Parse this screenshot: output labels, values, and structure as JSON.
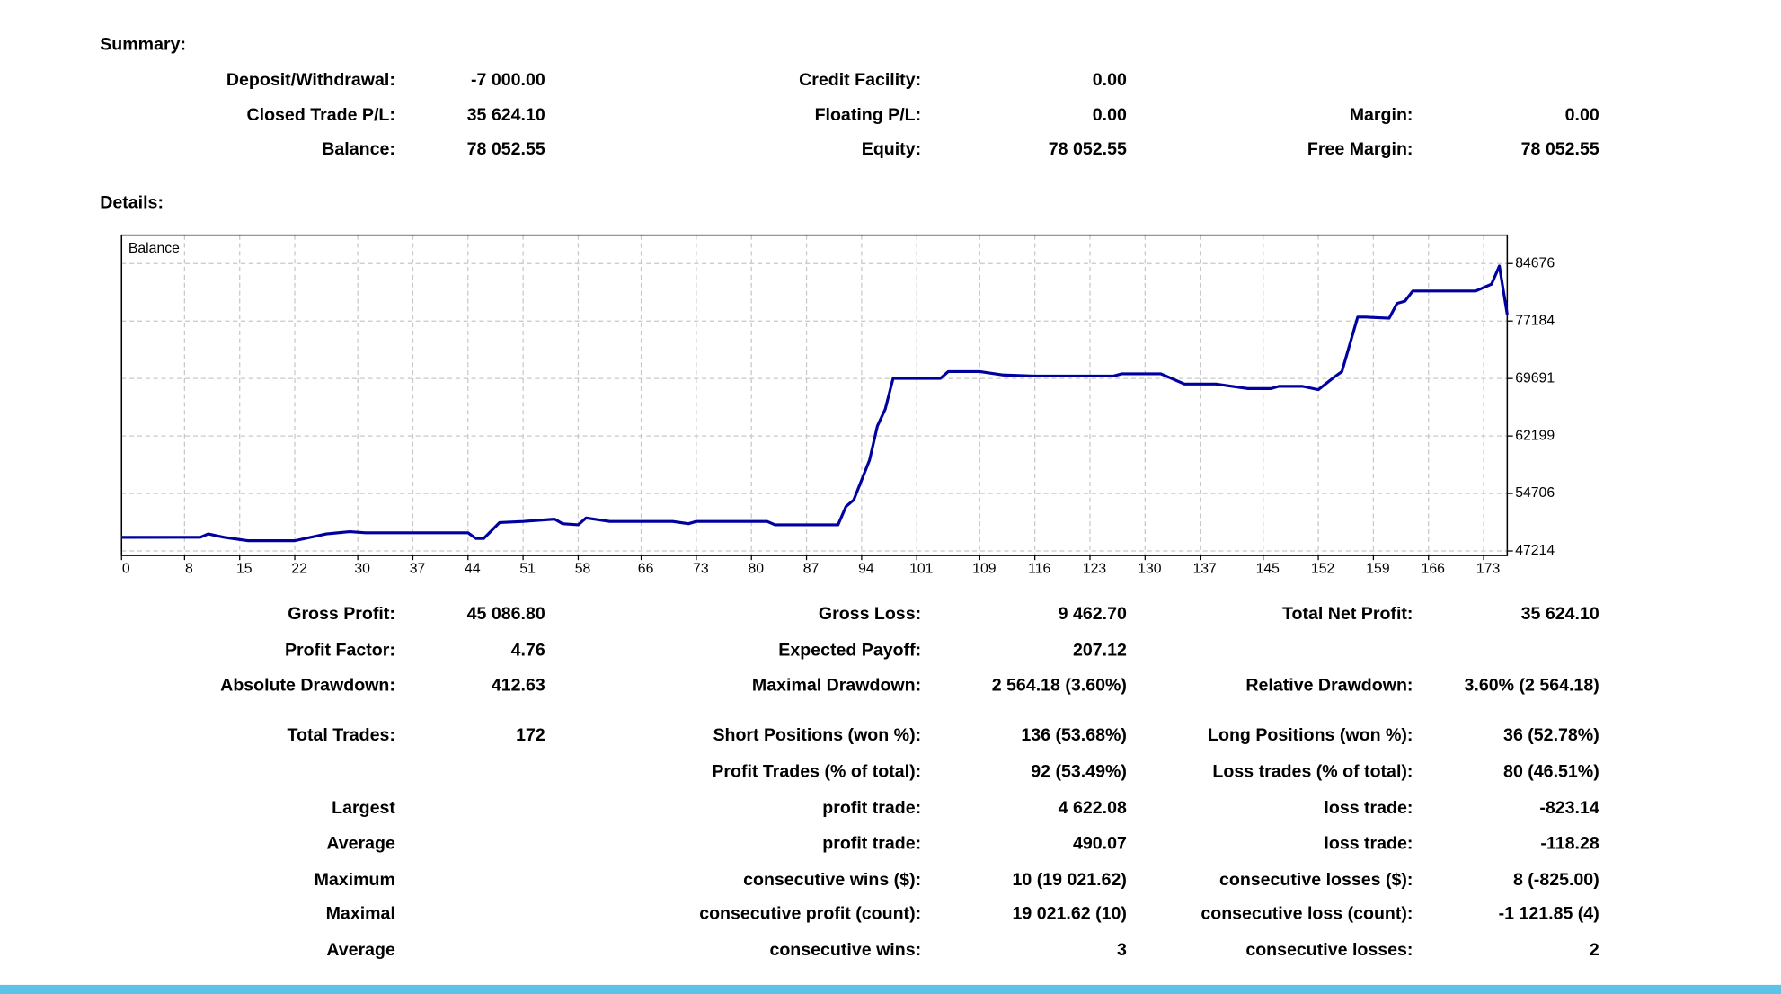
{
  "summary": {
    "title": "Summary:",
    "rows": [
      [
        "Deposit/Withdrawal:",
        "-7 000.00",
        "Credit Facility:",
        "0.00",
        null,
        null
      ],
      [
        "Closed Trade P/L:",
        "35 624.10",
        "Floating P/L:",
        "0.00",
        "Margin:",
        "0.00"
      ],
      [
        "Balance:",
        "78 052.55",
        "Equity:",
        "78 052.55",
        "Free Margin:",
        "78 052.55"
      ]
    ]
  },
  "details": {
    "title": "Details:",
    "rows": [
      [
        "Gross Profit:",
        "45 086.80",
        "Gross Loss:",
        "9 462.70",
        "Total Net Profit:",
        "35 624.10"
      ],
      [
        "Profit Factor:",
        "4.76",
        "Expected Payoff:",
        "207.12",
        null,
        null
      ],
      [
        "Absolute Drawdown:",
        "412.63",
        "Maximal Drawdown:",
        "2 564.18 (3.60%)",
        "Relative Drawdown:",
        "3.60% (2 564.18)"
      ],
      [
        "Total Trades:",
        "172",
        "Short Positions (won %):",
        "136 (53.68%)",
        "Long Positions (won %):",
        "36 (52.78%)"
      ],
      [
        null,
        null,
        "Profit Trades (% of total):",
        "92 (53.49%)",
        "Loss trades (% of total):",
        "80 (46.51%)"
      ],
      [
        "Largest",
        null,
        "profit trade:",
        "4 622.08",
        "loss trade:",
        "-823.14"
      ],
      [
        "Average",
        null,
        "profit trade:",
        "490.07",
        "loss trade:",
        "-118.28"
      ],
      [
        "Maximum",
        null,
        "consecutive wins ($):",
        "10 (19 021.62)",
        "consecutive losses ($):",
        "8 (-825.00)"
      ],
      [
        "Maximal",
        null,
        "consecutive profit (count):",
        "19 021.62 (10)",
        "consecutive loss (count):",
        "-1 121.85 (4)"
      ],
      [
        "Average",
        null,
        "consecutive wins:",
        "3",
        "consecutive losses:",
        "2"
      ]
    ]
  },
  "chart_data": {
    "type": "line",
    "x": [
      0,
      10,
      11,
      13,
      16,
      22,
      26,
      29,
      31,
      44,
      45,
      46,
      48,
      51,
      55,
      56,
      58,
      59,
      62,
      67,
      70,
      72,
      73,
      82,
      83,
      91,
      92,
      93,
      95,
      96,
      97,
      98,
      104,
      105,
      109,
      112,
      116,
      126,
      127,
      132,
      135,
      139,
      143,
      146,
      147,
      150,
      152,
      154,
      155,
      157,
      158,
      161,
      162,
      163,
      164,
      172,
      174,
      175,
      176
    ],
    "series": [
      {
        "name": "Balance",
        "color": "#0000a0",
        "values": [
          48990,
          49000,
          49440,
          49000,
          48550,
          48550,
          49440,
          49730,
          49580,
          49580,
          48840,
          48840,
          50910,
          51060,
          51360,
          50770,
          50620,
          51510,
          51060,
          51060,
          51060,
          50770,
          51060,
          51060,
          50620,
          50620,
          52990,
          53870,
          59050,
          63490,
          65710,
          69710,
          69710,
          70600,
          70600,
          70150,
          70010,
          70010,
          70300,
          70300,
          68970,
          68970,
          68380,
          68380,
          68670,
          68670,
          68230,
          69860,
          70600,
          77700,
          77700,
          77550,
          79480,
          79770,
          81100,
          81100,
          81990,
          84360,
          78050
        ]
      }
    ],
    "xlim": [
      0,
      176
    ],
    "xticks": [
      0,
      8,
      15,
      22,
      30,
      37,
      44,
      51,
      58,
      66,
      73,
      80,
      87,
      94,
      101,
      109,
      116,
      123,
      130,
      137,
      145,
      152,
      159,
      166,
      173
    ],
    "ylim": [
      46620,
      88380
    ],
    "yticks": [
      47214,
      54706,
      62199,
      69691,
      77184,
      84676
    ],
    "grid": true
  }
}
